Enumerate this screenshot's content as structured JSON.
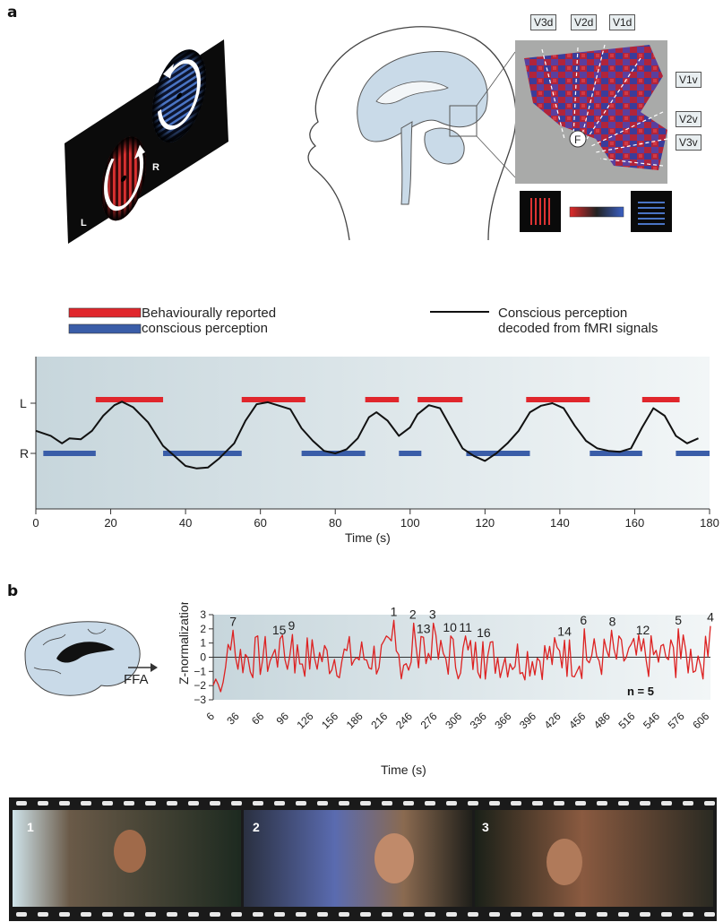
{
  "panels": {
    "a": "a",
    "b": "b"
  },
  "stimulus": {
    "left_label": "L",
    "right_label": "R"
  },
  "brain_inset": {
    "visual_areas": [
      "V3d",
      "V2d",
      "V1d",
      "V1v",
      "V2v",
      "V3v"
    ],
    "fixation_label": "F"
  },
  "legend": {
    "reported": "Behaviourally reported",
    "reported2": "conscious perception",
    "decoded": "Conscious perception",
    "decoded2": "decoded from fMRI signals"
  },
  "colors": {
    "left_red": "#e0262c",
    "right_blue": "#3a5da8",
    "decoded_line": "#111111",
    "face_red": "#dd2222"
  },
  "chart_data": [
    {
      "type": "line",
      "xlabel": "Time (s)",
      "ylabel": "",
      "xlim": [
        0,
        180
      ],
      "x_ticks": [
        0,
        20,
        40,
        60,
        80,
        100,
        120,
        140,
        160,
        180
      ],
      "y_categories": [
        "R",
        "L"
      ],
      "left_reported_segments": [
        [
          16,
          34
        ],
        [
          55,
          72
        ],
        [
          88,
          97
        ],
        [
          102,
          114
        ],
        [
          131,
          148
        ],
        [
          162,
          172
        ]
      ],
      "right_reported_segments": [
        [
          2,
          16
        ],
        [
          34,
          55
        ],
        [
          71,
          88
        ],
        [
          97,
          103
        ],
        [
          115,
          132
        ],
        [
          148,
          162
        ],
        [
          171,
          181
        ]
      ],
      "decoded_series": {
        "t": [
          0,
          4,
          7,
          9,
          12,
          15,
          18,
          21,
          23,
          26,
          30,
          34,
          37,
          40,
          43,
          46,
          49,
          53,
          56,
          59,
          62,
          65,
          68,
          71,
          74,
          77,
          80,
          83,
          86,
          89,
          91,
          94,
          97,
          100,
          102,
          105,
          108,
          111,
          114,
          117,
          120,
          123,
          126,
          129,
          132,
          135,
          138,
          141,
          144,
          147,
          150,
          153,
          156,
          159,
          162,
          165,
          168,
          171,
          174,
          177
        ],
        "v": [
          0.45,
          0.35,
          0.2,
          0.3,
          0.28,
          0.45,
          0.75,
          0.96,
          1.03,
          0.92,
          0.62,
          0.15,
          -0.05,
          -0.25,
          -0.3,
          -0.28,
          -0.1,
          0.2,
          0.65,
          0.98,
          1.02,
          0.95,
          0.88,
          0.5,
          0.25,
          0.05,
          0.0,
          0.08,
          0.3,
          0.72,
          0.82,
          0.65,
          0.35,
          0.52,
          0.78,
          0.96,
          0.9,
          0.5,
          0.1,
          -0.05,
          -0.15,
          0.0,
          0.2,
          0.45,
          0.82,
          0.95,
          1.0,
          0.9,
          0.55,
          0.25,
          0.1,
          0.05,
          0.03,
          0.1,
          0.52,
          0.9,
          0.75,
          0.35,
          0.2,
          0.3
        ]
      }
    },
    {
      "type": "line",
      "xlabel": "Time (s)",
      "ylabel": "Z-normalization",
      "ylim": [
        -3,
        3
      ],
      "y_ticks": [
        3,
        2,
        1,
        0,
        -1,
        -2,
        -3
      ],
      "x_ticks": [
        6,
        36,
        66,
        96,
        126,
        156,
        186,
        216,
        246,
        276,
        306,
        336,
        366,
        396,
        426,
        456,
        486,
        516,
        546,
        576,
        606
      ],
      "annotation": "n = 5",
      "peaks": [
        {
          "label": "7",
          "t": 30,
          "z": 1.9
        },
        {
          "label": "15",
          "t": 86,
          "z": 1.3
        },
        {
          "label": "9",
          "t": 101,
          "z": 1.6
        },
        {
          "label": "1",
          "t": 225,
          "z": 2.6
        },
        {
          "label": "2",
          "t": 248,
          "z": 2.4
        },
        {
          "label": "13",
          "t": 261,
          "z": 1.4
        },
        {
          "label": "3",
          "t": 272,
          "z": 2.4
        },
        {
          "label": "10",
          "t": 293,
          "z": 1.5
        },
        {
          "label": "11",
          "t": 312,
          "z": 1.5
        },
        {
          "label": "16",
          "t": 334,
          "z": 1.1
        },
        {
          "label": "14",
          "t": 432,
          "z": 1.2
        },
        {
          "label": "6",
          "t": 455,
          "z": 2.0
        },
        {
          "label": "8",
          "t": 490,
          "z": 1.9
        },
        {
          "label": "12",
          "t": 527,
          "z": 1.3
        },
        {
          "label": "5",
          "t": 570,
          "z": 2.0
        },
        {
          "label": "4",
          "t": 609,
          "z": 2.2
        }
      ]
    }
  ],
  "ffa_label": "FFA",
  "film_frames": [
    "1",
    "2",
    "3"
  ]
}
